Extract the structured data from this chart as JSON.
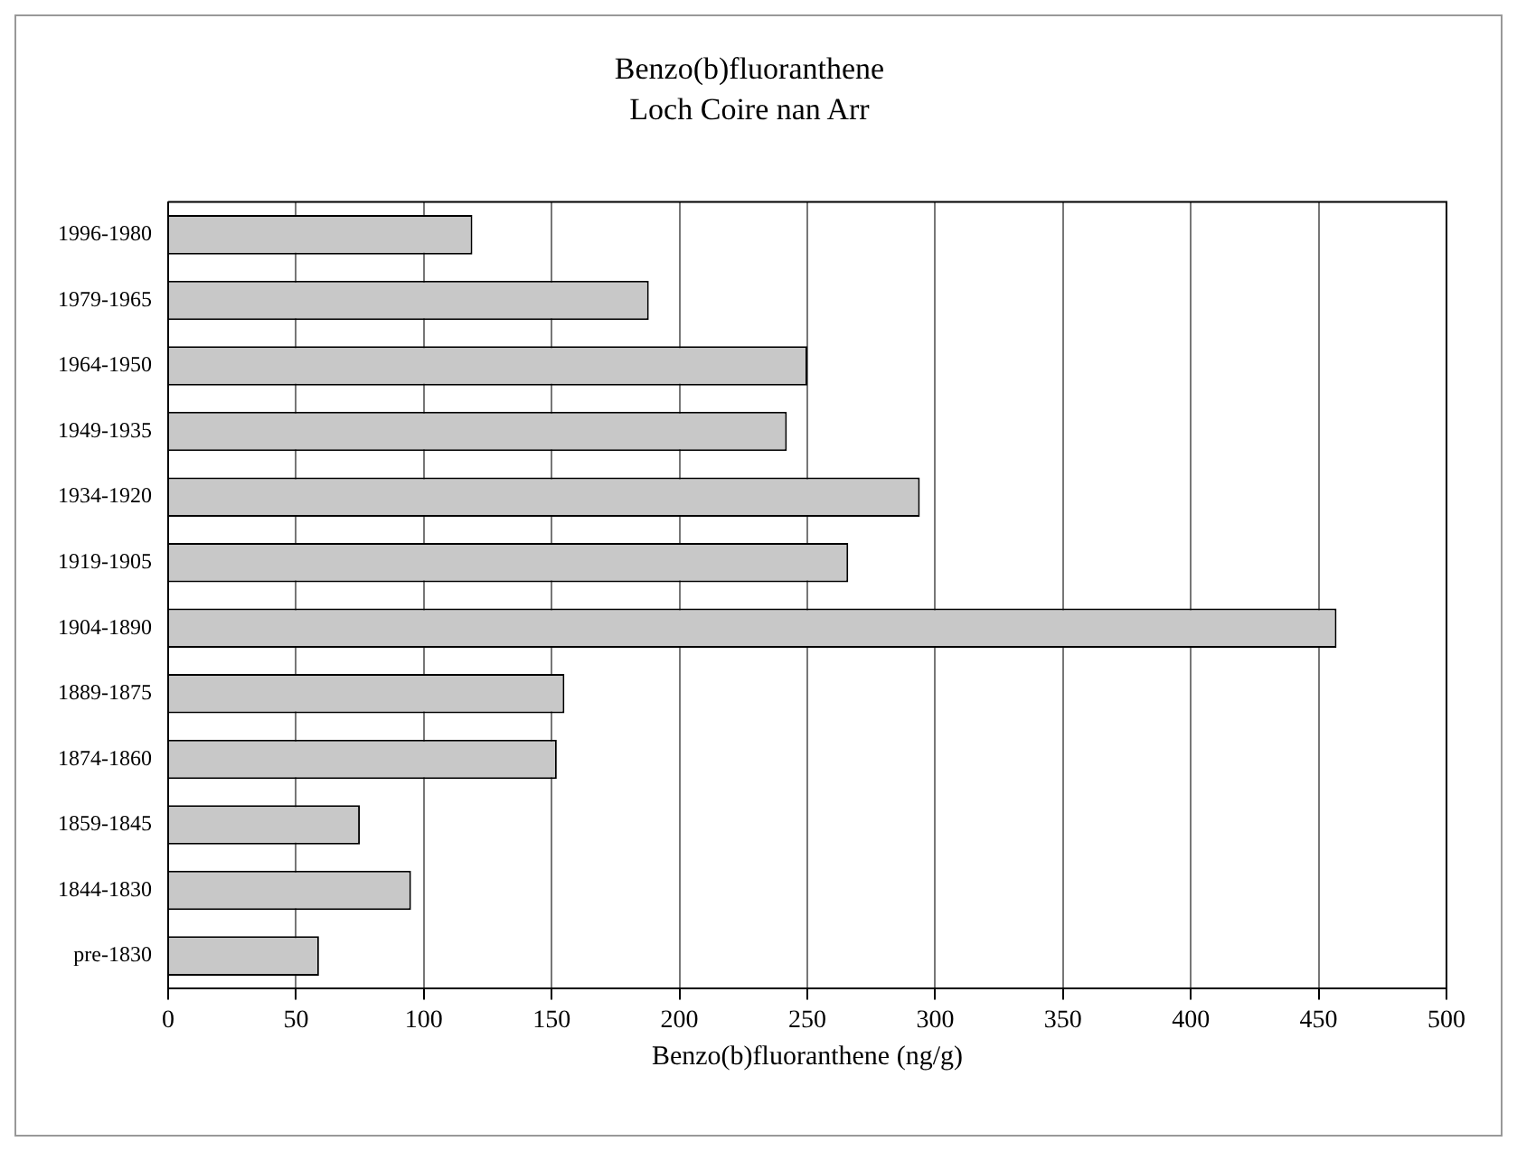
{
  "chart_data": {
    "type": "bar",
    "orientation": "horizontal",
    "title": "Benzo(b)fluoranthene",
    "subtitle": "Loch Coire nan Arr",
    "xlabel": "Benzo(b)fluoranthene (ng/g)",
    "categories": [
      "1996-1980",
      "1979-1965",
      "1964-1950",
      "1949-1935",
      "1934-1920",
      "1919-1905",
      "1904-1890",
      "1889-1875",
      "1874-1860",
      "1859-1845",
      "1844-1830",
      "pre-1830"
    ],
    "values": [
      119,
      188,
      250,
      242,
      294,
      266,
      457,
      155,
      152,
      75,
      95,
      59
    ],
    "color": "#c8c8c8",
    "xlim": [
      0,
      500
    ],
    "xticks": [
      0,
      50,
      100,
      150,
      200,
      250,
      300,
      350,
      400,
      450,
      500
    ],
    "grid": "x",
    "legend": false
  }
}
